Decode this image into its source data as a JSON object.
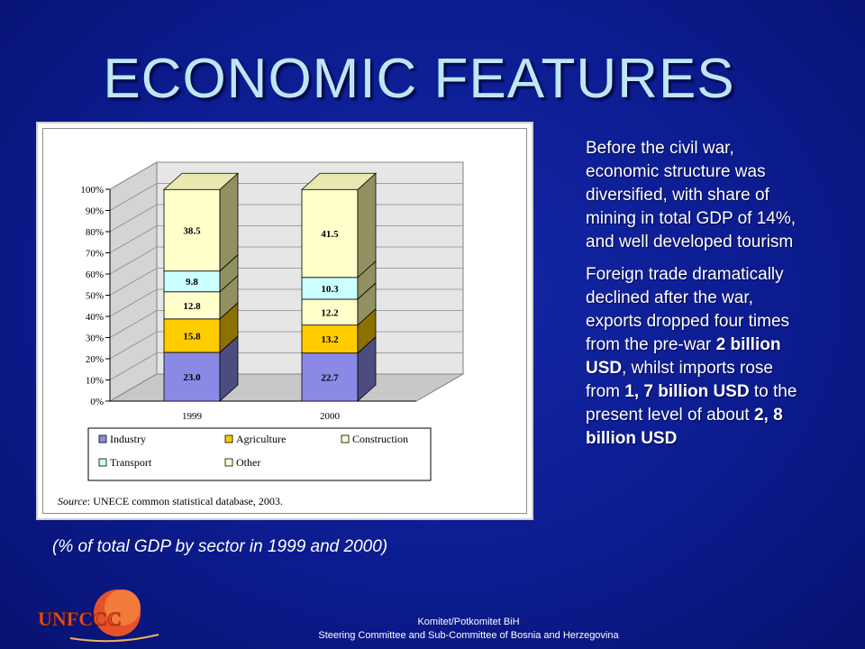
{
  "slide": {
    "title": "ECONOMIC FEATURES",
    "caption": "(% of total GDP by sector  in 1999 and  2000)",
    "para1": "Before the civil war, economic structure was diversified, with share of mining in total GDP   of 14%, and well developed tourism",
    "para2_parts": {
      "a": "Foreign trade dramatically declined after the war, exports dropped four times from the pre-war ",
      "b": "2 billion USD",
      "c": ", whilst imports rose from ",
      "d": "1, 7 billion USD",
      "e": " to the present level of about ",
      "f": "2, 8 billion USD"
    },
    "footer_line1": "Komitet/Potkomitet BiH",
    "footer_line2": "Steering Committee and Sub-Committee of Bosnia and Herzegovina",
    "logo_text": "UNFCCC"
  },
  "chart_data": {
    "type": "bar",
    "stacked": true,
    "three_d": true,
    "categories": [
      "1999",
      "2000"
    ],
    "series": [
      {
        "name": "Industry",
        "values": [
          23.0,
          22.7
        ],
        "color": "#8a8ae6"
      },
      {
        "name": "Agriculture",
        "values": [
          15.8,
          13.2
        ],
        "color": "#ffcc00"
      },
      {
        "name": "Construction",
        "values": [
          12.8,
          12.2
        ],
        "color": "#ffffcc"
      },
      {
        "name": "Transport",
        "values": [
          9.8,
          10.3
        ],
        "color": "#ccffff"
      },
      {
        "name": "Other",
        "values": [
          38.5,
          41.5
        ],
        "color": "#ffffcc"
      }
    ],
    "value_labels": [
      [
        "23.0",
        "22.7"
      ],
      [
        "15.8",
        "13.2"
      ],
      [
        "12.8",
        "12.2"
      ],
      [
        "9.8",
        "10.3"
      ],
      [
        "38.5",
        "41.5"
      ]
    ],
    "y_ticks": [
      "0%",
      "10%",
      "20%",
      "30%",
      "40%",
      "50%",
      "60%",
      "70%",
      "80%",
      "90%",
      "100%"
    ],
    "ylim": [
      0,
      100
    ],
    "legend_position": "bottom",
    "source_label": "Source",
    "source_text": ": UNECE common statistical database, 2003."
  }
}
